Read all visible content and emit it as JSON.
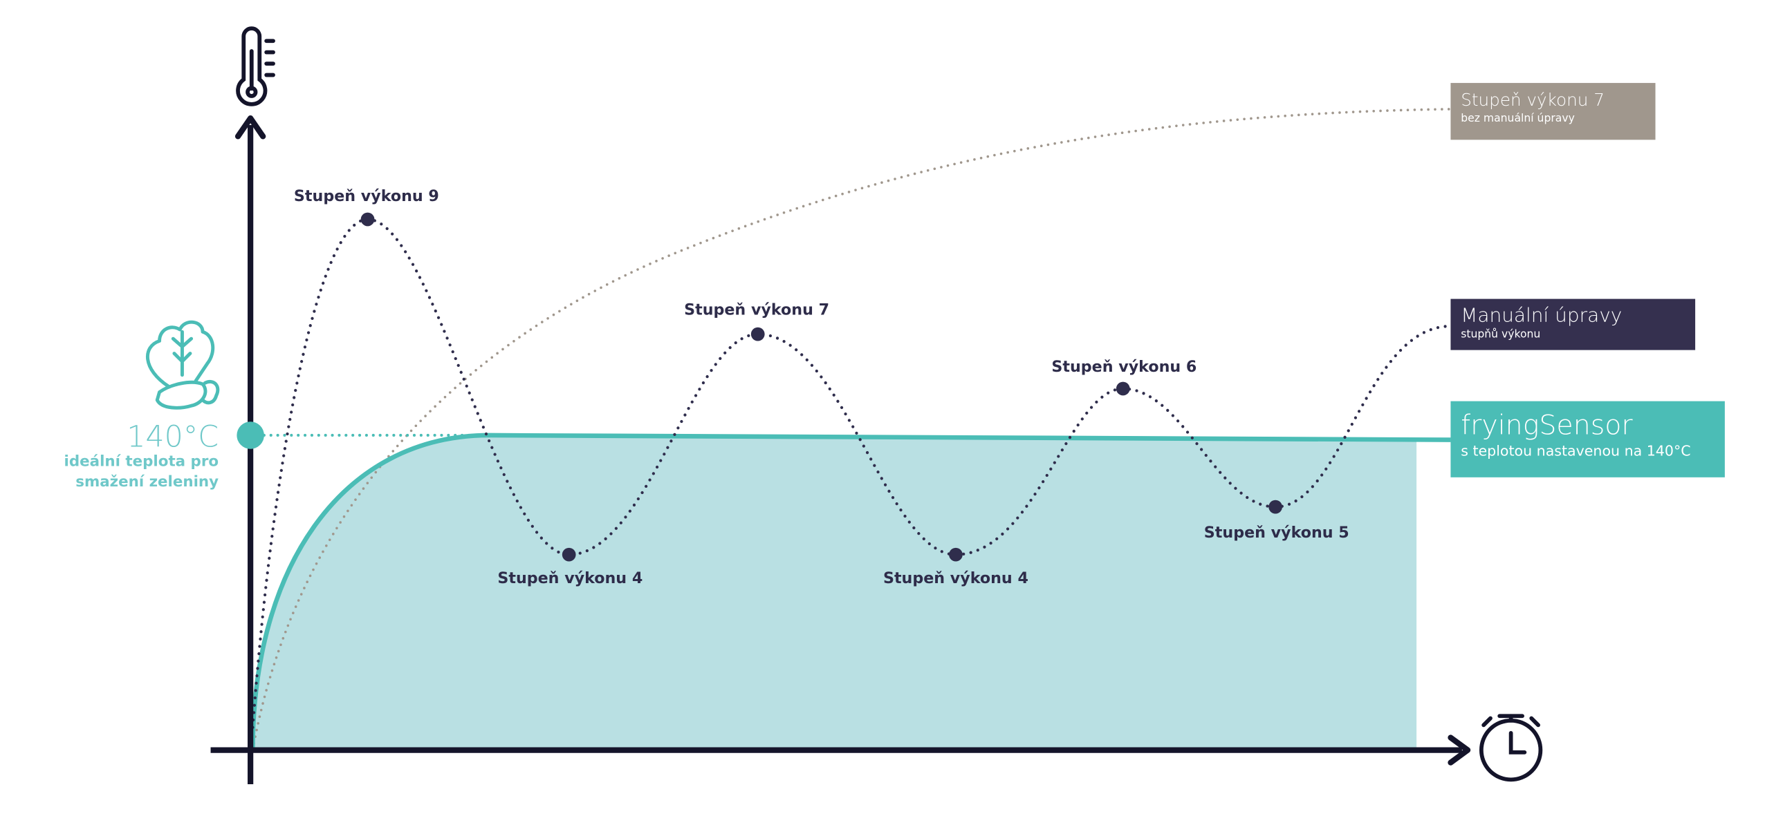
{
  "colors": {
    "teal": "#4bbdb6",
    "teal_fill": "#b9e0e3",
    "dark": "#2f2d4c",
    "gray": "#a0978d",
    "axis": "#14142a",
    "left_text": "#6fc8c9"
  },
  "icons": {
    "y_axis": "thermometer-icon",
    "x_axis": "stopwatch-icon",
    "reference": "vegetables-icon"
  },
  "reference": {
    "temperature": "140°C",
    "line1": "ideální teplota pro",
    "line2": "smažení zeleniny"
  },
  "legend": [
    {
      "title": "Stupeň výkonu 7",
      "subtitle": "bez manuální úpravy",
      "color": "#a0978d"
    },
    {
      "title": "Manuální úpravy",
      "subtitle": "stupňů výkonu",
      "color": "#35304f"
    },
    {
      "title": "fryingSensor",
      "subtitle": "s teplotou nastavenou na 140°C",
      "color": "#4bbdb6"
    }
  ],
  "chart_data": {
    "type": "line",
    "xlabel": "",
    "ylabel": "",
    "grid": false,
    "legend_placement": "right",
    "series": [
      {
        "name": "Stupeň výkonu 7 bez manuální úpravy",
        "style": "dotted",
        "shape": "rising, saturating"
      },
      {
        "name": "Manuální úpravy stupňů výkonu",
        "style": "dotted",
        "shape": "oscillating",
        "points": [
          {
            "label": "Stupeň výkonu 9",
            "power_level": 9,
            "extreme": "peak"
          },
          {
            "label": "Stupeň výkonu 4",
            "power_level": 4,
            "extreme": "trough"
          },
          {
            "label": "Stupeň výkonu 7",
            "power_level": 7,
            "extreme": "peak"
          },
          {
            "label": "Stupeň výkonu 4",
            "power_level": 4,
            "extreme": "trough"
          },
          {
            "label": "Stupeň výkonu 6",
            "power_level": 6,
            "extreme": "peak"
          },
          {
            "label": "Stupeň výkonu 5",
            "power_level": 5,
            "extreme": "trough"
          }
        ]
      },
      {
        "name": "fryingSensor s teplotou nastavenou na 140°C",
        "style": "solid area",
        "target_temperature_c": 140
      }
    ]
  }
}
